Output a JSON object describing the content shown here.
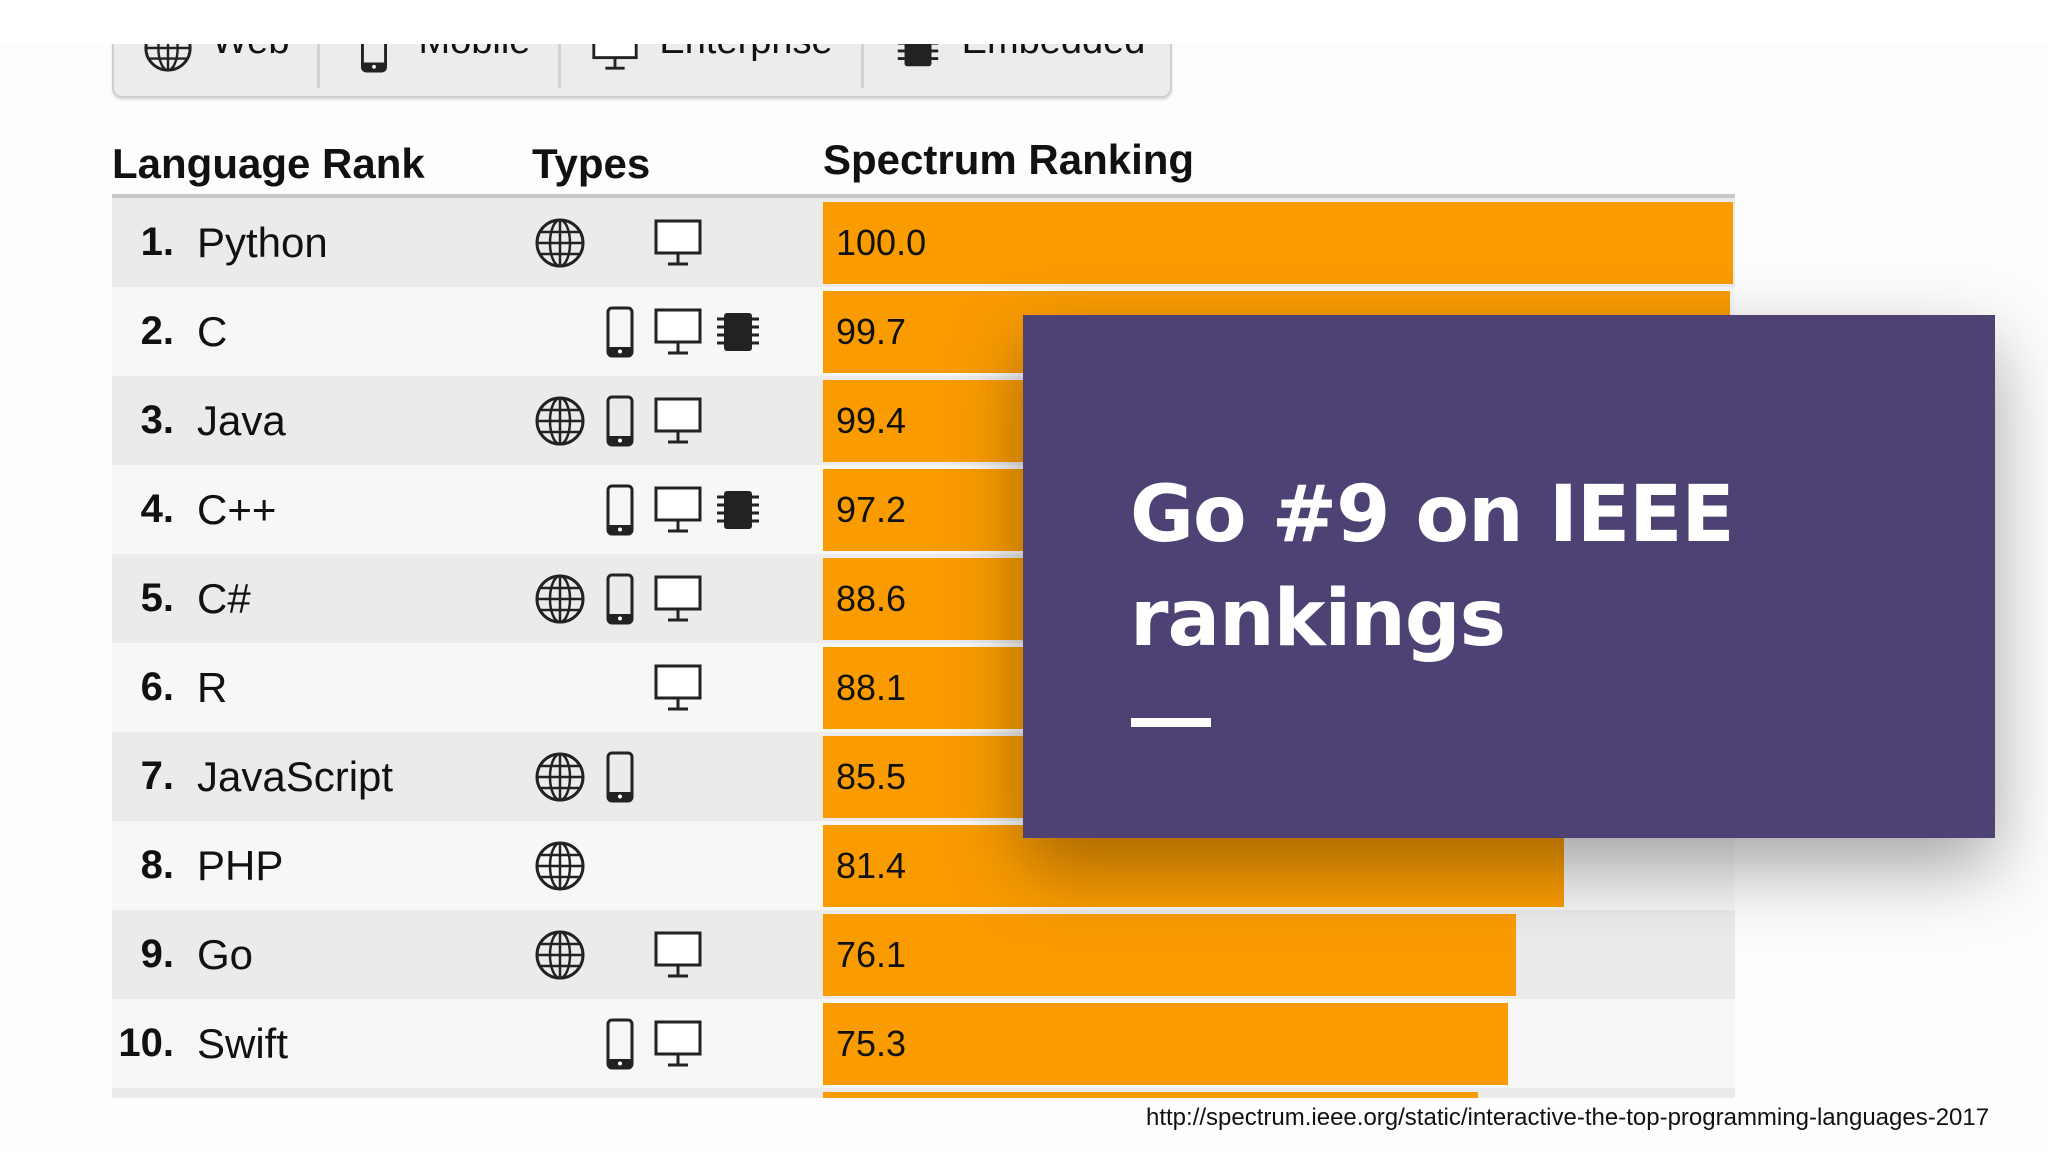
{
  "filter_tabs": [
    {
      "label": "Web",
      "icon": "globe-icon"
    },
    {
      "label": "Mobile",
      "icon": "phone-icon"
    },
    {
      "label": "Enterprise",
      "icon": "monitor-icon"
    },
    {
      "label": "Embedded",
      "icon": "chip-icon"
    }
  ],
  "table": {
    "headers": {
      "language_rank": "Language Rank",
      "types": "Types",
      "spectrum_ranking": "Spectrum Ranking"
    },
    "max_score": 100,
    "rows": [
      {
        "rank": "1.",
        "name": "Python",
        "types": [
          "web",
          "enterprise"
        ],
        "score": "100.0"
      },
      {
        "rank": "2.",
        "name": "C",
        "types": [
          "mobile",
          "enterprise",
          "embedded"
        ],
        "score": "99.7"
      },
      {
        "rank": "3.",
        "name": "Java",
        "types": [
          "web",
          "mobile",
          "enterprise"
        ],
        "score": "99.4"
      },
      {
        "rank": "4.",
        "name": "C++",
        "types": [
          "mobile",
          "enterprise",
          "embedded"
        ],
        "score": "97.2"
      },
      {
        "rank": "5.",
        "name": "C#",
        "types": [
          "web",
          "mobile",
          "enterprise"
        ],
        "score": "88.6"
      },
      {
        "rank": "6.",
        "name": "R",
        "types": [
          "enterprise"
        ],
        "score": "88.1"
      },
      {
        "rank": "7.",
        "name": "JavaScript",
        "types": [
          "web",
          "mobile"
        ],
        "score": "85.5"
      },
      {
        "rank": "8.",
        "name": "PHP",
        "types": [
          "web"
        ],
        "score": "81.4"
      },
      {
        "rank": "9.",
        "name": "Go",
        "types": [
          "web",
          "enterprise"
        ],
        "score": "76.1"
      },
      {
        "rank": "10.",
        "name": "Swift",
        "types": [
          "mobile",
          "enterprise"
        ],
        "score": "75.3"
      }
    ],
    "partial_next_bar_fraction": 0.72
  },
  "overlay": {
    "title": "Go #9 on IEEE rankings",
    "line1": "Go #9 on IEEE",
    "line2": "rankings",
    "color": "#4e4275"
  },
  "source_url": "http://spectrum.ieee.org/static/interactive-the-top-programming-languages-2017",
  "colors": {
    "bar": "#fa9c00",
    "odd_row": "#ebebeb",
    "even_row": "#f7f7f7"
  }
}
